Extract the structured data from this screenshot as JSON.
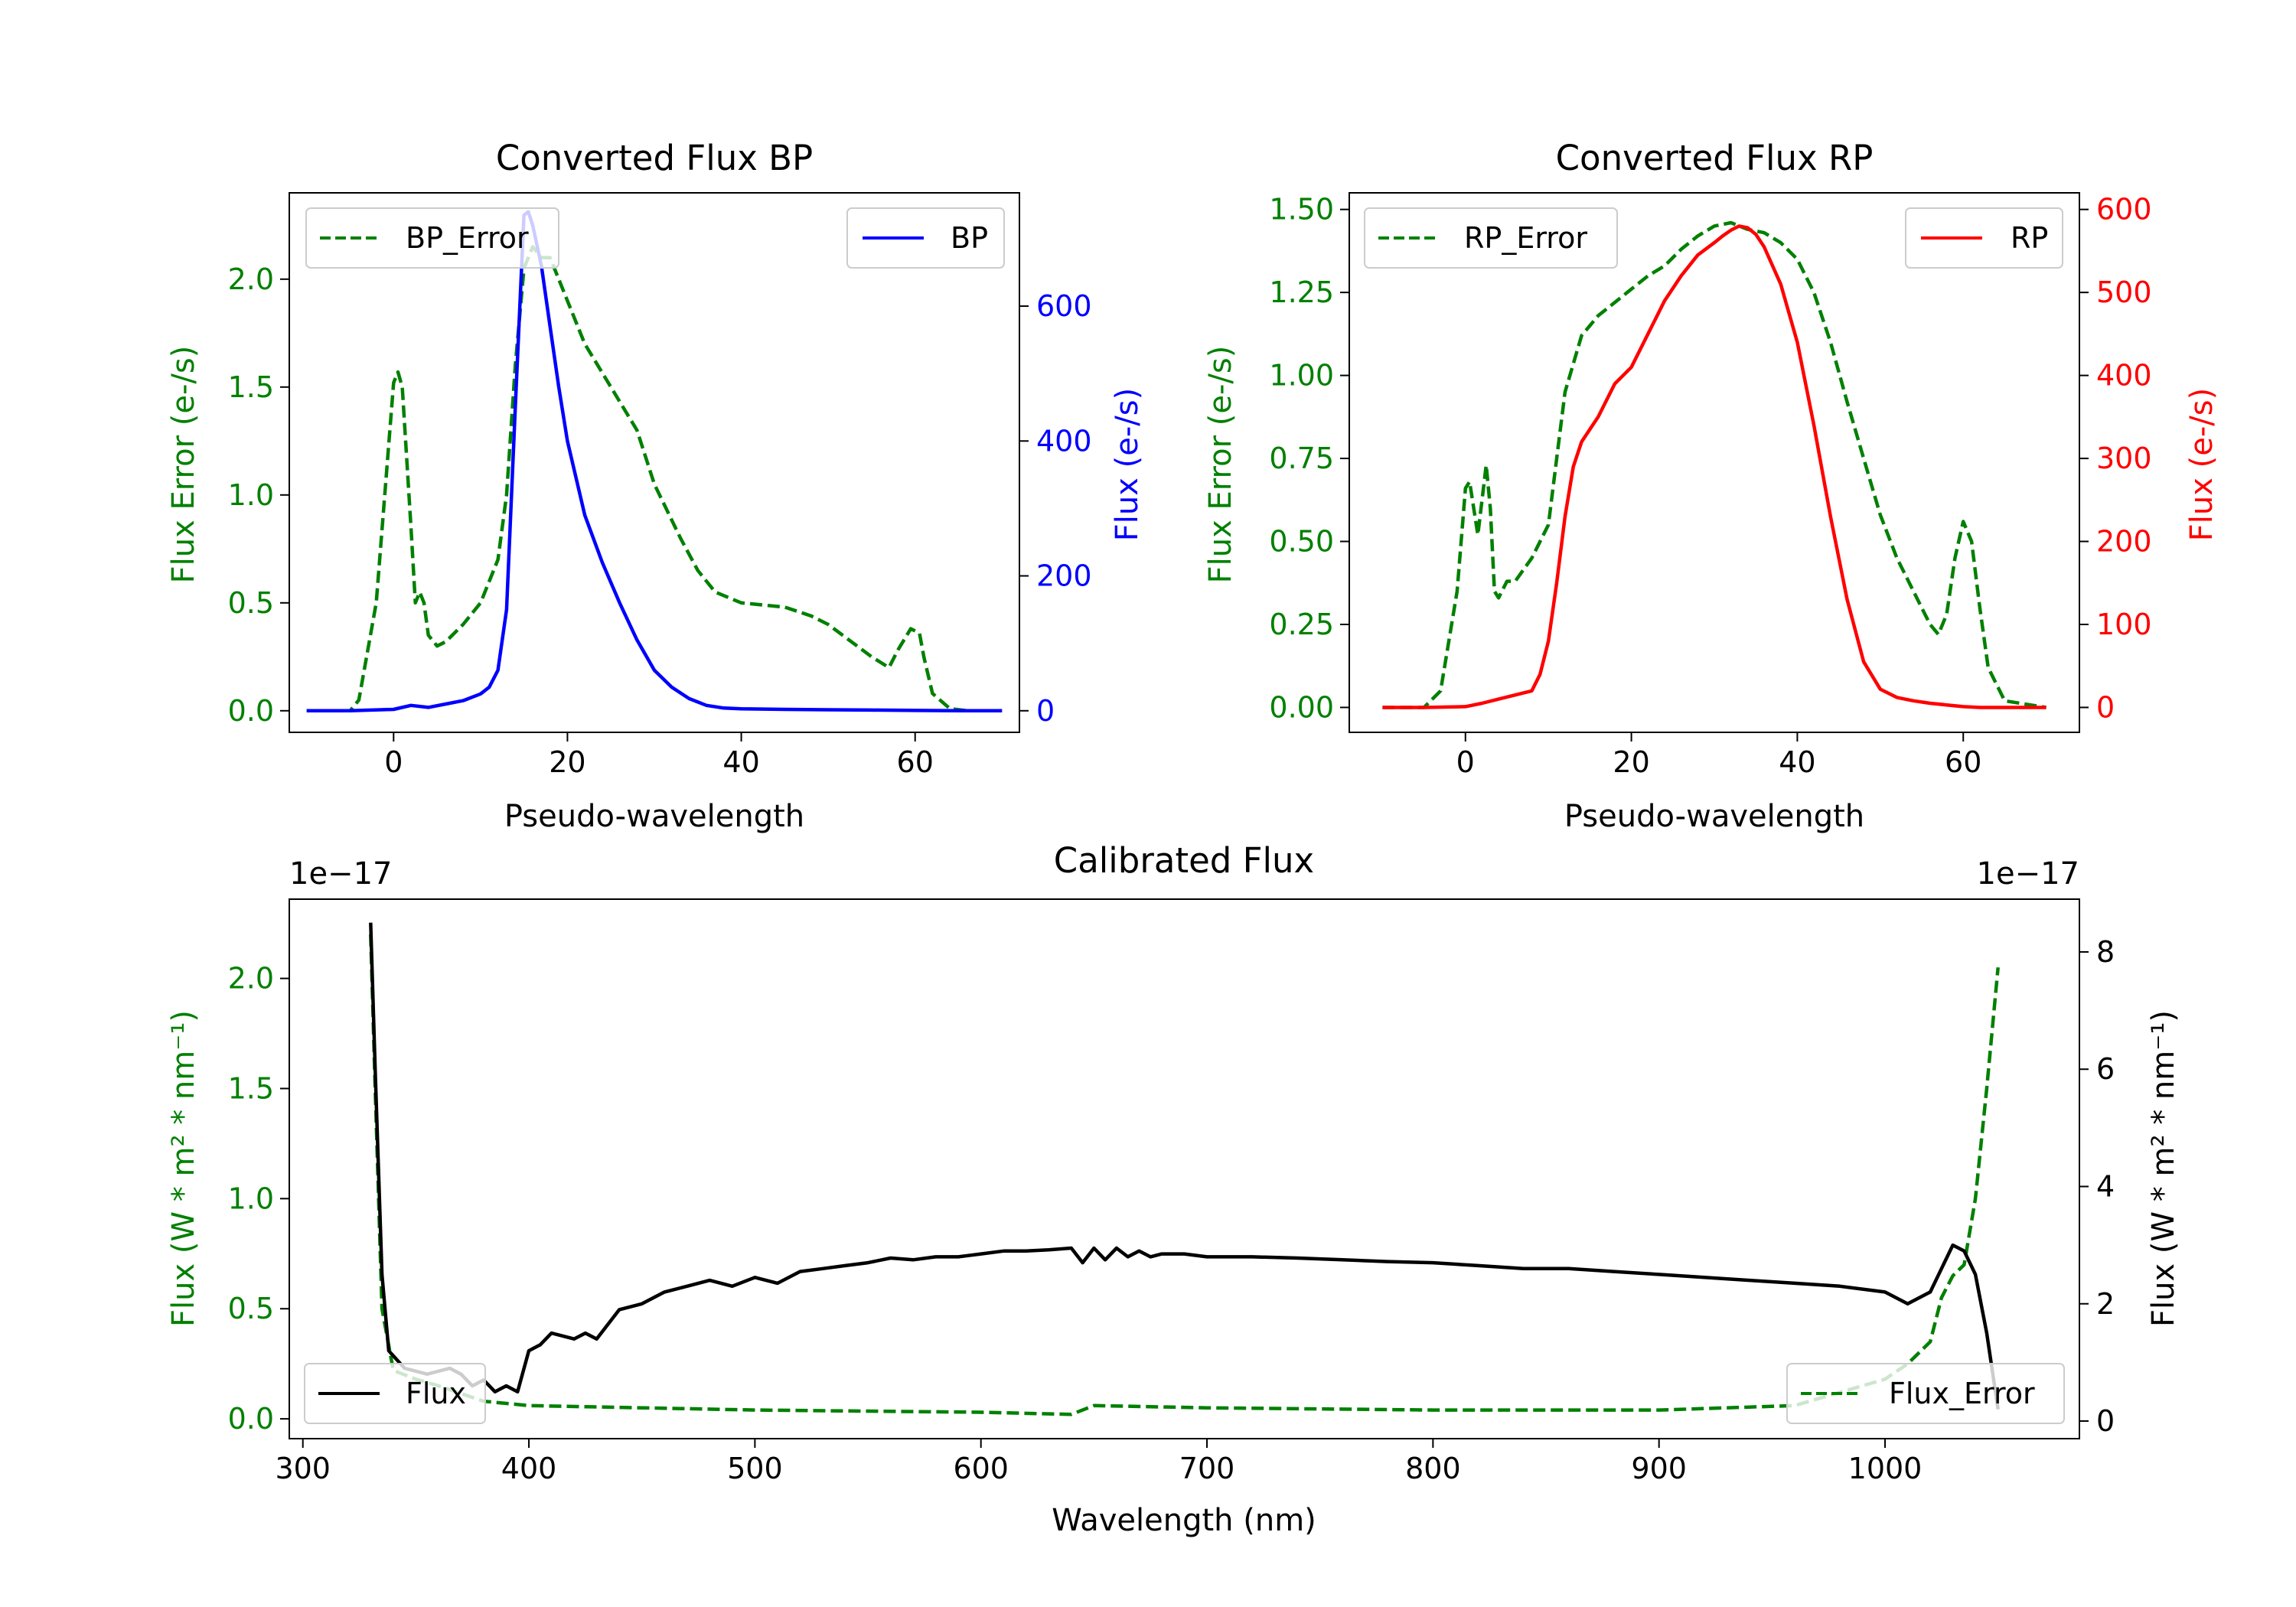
{
  "colors": {
    "green": "#008000",
    "blue": "#0000ff",
    "red": "#ff0000",
    "black": "#000000"
  },
  "chart_data": [
    {
      "id": "bp",
      "type": "line",
      "title": "Converted Flux BP",
      "xlabel": "Pseudo-wavelength",
      "ylabel_left": "Flux Error (e-/s)",
      "ylabel_right": "Flux (e-/s)",
      "xlim": [
        -12,
        72
      ],
      "ylim_left": [
        -0.1,
        2.4
      ],
      "ylim_right": [
        -32,
        768
      ],
      "xticks": [
        0,
        20,
        40,
        60
      ],
      "yticks_left": [
        "0.0",
        "0.5",
        "1.0",
        "1.5",
        "2.0"
      ],
      "yticks_right": [
        "0",
        "200",
        "400",
        "600"
      ],
      "legend_left": {
        "label": "BP_Error",
        "position": "upper left"
      },
      "legend_right": {
        "label": "BP",
        "position": "upper right"
      },
      "series": [
        {
          "name": "BP_Error",
          "axis": "left",
          "color": "#008000",
          "style": "dashed",
          "x": [
            -10,
            -5,
            -4,
            -2,
            0,
            0.5,
            1,
            2,
            2.5,
            3,
            3.5,
            4,
            5,
            6,
            8,
            10,
            12,
            13,
            14,
            15,
            16,
            17,
            18,
            20,
            22,
            25,
            28,
            30,
            33,
            35,
            37,
            40,
            45,
            48,
            50,
            55,
            57,
            58,
            59.5,
            60.5,
            61,
            62,
            64,
            66,
            70
          ],
          "y": [
            0,
            0,
            0.05,
            0.5,
            1.52,
            1.57,
            1.5,
            0.85,
            0.5,
            0.55,
            0.5,
            0.35,
            0.3,
            0.32,
            0.4,
            0.5,
            0.7,
            1.0,
            1.6,
            2.05,
            2.15,
            2.1,
            2.1,
            1.9,
            1.7,
            1.5,
            1.3,
            1.05,
            0.8,
            0.65,
            0.55,
            0.5,
            0.48,
            0.44,
            0.4,
            0.25,
            0.2,
            0.28,
            0.38,
            0.36,
            0.25,
            0.08,
            0.01,
            0,
            0
          ]
        },
        {
          "name": "BP",
          "axis": "right",
          "color": "#0000ff",
          "style": "solid",
          "x": [
            -10,
            -5,
            0,
            2,
            4,
            6,
            8,
            10,
            11,
            12,
            13,
            14,
            15,
            15.5,
            16,
            17,
            18,
            19,
            20,
            22,
            24,
            26,
            28,
            30,
            32,
            34,
            36,
            38,
            40,
            45,
            50,
            55,
            60,
            65,
            70
          ],
          "y": [
            0,
            0,
            2,
            8,
            5,
            10,
            15,
            25,
            35,
            60,
            150,
            450,
            735,
            740,
            720,
            660,
            570,
            480,
            400,
            290,
            220,
            160,
            105,
            60,
            35,
            18,
            8,
            4,
            3,
            2,
            1.5,
            1,
            0.5,
            0,
            0
          ]
        }
      ]
    },
    {
      "id": "rp",
      "type": "line",
      "title": "Converted Flux RP",
      "xlabel": "Pseudo-wavelength",
      "ylabel_left": "Flux Error (e-/s)",
      "ylabel_right": "Flux (e-/s)",
      "xlim": [
        -14,
        74
      ],
      "ylim_left": [
        -0.075,
        1.55
      ],
      "ylim_right": [
        -30,
        620
      ],
      "xticks": [
        0,
        20,
        40,
        60
      ],
      "yticks_left": [
        "0.00",
        "0.25",
        "0.50",
        "0.75",
        "1.00",
        "1.25",
        "1.50"
      ],
      "yticks_right": [
        "0",
        "100",
        "200",
        "300",
        "400",
        "500",
        "600"
      ],
      "legend_left": {
        "label": "RP_Error",
        "position": "upper left"
      },
      "legend_right": {
        "label": "RP",
        "position": "upper right"
      },
      "series": [
        {
          "name": "RP_Error",
          "axis": "left",
          "color": "#008000",
          "style": "dashed",
          "x": [
            -10,
            -5,
            -3,
            -1,
            0,
            0.5,
            1,
            1.5,
            2.5,
            3,
            3.5,
            4,
            5,
            6,
            8,
            10,
            11,
            12,
            14,
            16,
            18,
            20,
            22,
            24,
            26,
            28,
            30,
            32,
            34,
            36,
            38,
            40,
            42,
            44,
            46,
            48,
            50,
            52,
            54,
            55,
            56,
            57,
            58,
            59,
            60,
            61,
            62,
            63,
            65,
            70
          ],
          "y": [
            0,
            0,
            0.05,
            0.35,
            0.66,
            0.68,
            0.6,
            0.52,
            0.73,
            0.6,
            0.35,
            0.33,
            0.38,
            0.38,
            0.45,
            0.55,
            0.75,
            0.95,
            1.12,
            1.18,
            1.22,
            1.26,
            1.3,
            1.33,
            1.38,
            1.42,
            1.45,
            1.46,
            1.44,
            1.43,
            1.4,
            1.35,
            1.25,
            1.1,
            0.92,
            0.75,
            0.58,
            0.45,
            0.35,
            0.3,
            0.25,
            0.22,
            0.28,
            0.45,
            0.56,
            0.5,
            0.3,
            0.12,
            0.02,
            0
          ]
        },
        {
          "name": "RP",
          "axis": "right",
          "color": "#ff0000",
          "style": "solid",
          "x": [
            -10,
            -5,
            0,
            2,
            4,
            6,
            8,
            9,
            10,
            11,
            12,
            13,
            14,
            16,
            18,
            20,
            22,
            24,
            26,
            28,
            30,
            31,
            32,
            33,
            34,
            35,
            36,
            38,
            40,
            42,
            44,
            46,
            48,
            50,
            52,
            54,
            56,
            58,
            60,
            62,
            65,
            70
          ],
          "y": [
            0,
            0,
            1,
            5,
            10,
            15,
            20,
            40,
            80,
            150,
            230,
            290,
            320,
            350,
            390,
            410,
            450,
            490,
            520,
            545,
            560,
            568,
            575,
            580,
            578,
            570,
            555,
            510,
            440,
            340,
            230,
            130,
            55,
            22,
            12,
            8,
            5,
            3,
            1,
            0,
            0,
            0
          ]
        }
      ]
    },
    {
      "id": "calibrated",
      "type": "line",
      "title": "Calibrated Flux",
      "xlabel": "Wavelength (nm)",
      "ylabel_left": "Flux (W * m² * nm⁻¹)",
      "ylabel_right": "Flux (W * m² * nm⁻¹)",
      "offset_left": "1e−17",
      "offset_right": "1e−17",
      "xlim": [
        294,
        1086
      ],
      "ylim_left": [
        -0.09,
        2.36
      ],
      "ylim_right": [
        -0.3,
        8.9
      ],
      "xticks": [
        300,
        400,
        500,
        600,
        700,
        800,
        900,
        1000
      ],
      "yticks_left": [
        "0.0",
        "0.5",
        "1.0",
        "1.5",
        "2.0"
      ],
      "yticks_right": [
        "0",
        "2",
        "4",
        "6",
        "8"
      ],
      "legend_left": {
        "label": "Flux",
        "position": "lower left"
      },
      "legend_right": {
        "label": "Flux_Error",
        "position": "lower right"
      },
      "series": [
        {
          "name": "Flux_Error",
          "axis": "left",
          "color": "#008000",
          "style": "dashed",
          "x": [
            330,
            332,
            335,
            340,
            350,
            360,
            380,
            400,
            450,
            500,
            600,
            640,
            650,
            700,
            800,
            900,
            960,
            1000,
            1010,
            1020,
            1025,
            1030,
            1035,
            1040,
            1045,
            1050
          ],
          "y": [
            2.2,
            1.5,
            0.5,
            0.22,
            0.18,
            0.15,
            0.08,
            0.06,
            0.05,
            0.04,
            0.03,
            0.02,
            0.06,
            0.05,
            0.04,
            0.04,
            0.06,
            0.18,
            0.25,
            0.35,
            0.55,
            0.65,
            0.7,
            1.0,
            1.5,
            2.05
          ]
        },
        {
          "name": "Flux",
          "axis": "right",
          "color": "#000000",
          "style": "solid",
          "x": [
            330,
            332,
            335,
            338,
            345,
            355,
            365,
            370,
            375,
            380,
            385,
            390,
            395,
            400,
            405,
            410,
            420,
            425,
            430,
            440,
            450,
            460,
            470,
            480,
            490,
            500,
            510,
            520,
            530,
            540,
            550,
            560,
            570,
            580,
            590,
            600,
            610,
            620,
            630,
            640,
            645,
            650,
            655,
            660,
            665,
            670,
            675,
            680,
            690,
            700,
            720,
            740,
            760,
            780,
            800,
            820,
            840,
            860,
            880,
            900,
            920,
            940,
            960,
            980,
            1000,
            1010,
            1020,
            1025,
            1030,
            1035,
            1040,
            1045,
            1050
          ],
          "y": [
            8.5,
            6.0,
            2.5,
            1.2,
            0.9,
            0.8,
            0.9,
            0.8,
            0.6,
            0.7,
            0.5,
            0.6,
            0.5,
            1.2,
            1.3,
            1.5,
            1.4,
            1.5,
            1.4,
            1.9,
            2.0,
            2.2,
            2.3,
            2.4,
            2.3,
            2.45,
            2.35,
            2.55,
            2.6,
            2.65,
            2.7,
            2.78,
            2.75,
            2.8,
            2.8,
            2.85,
            2.9,
            2.9,
            2.92,
            2.95,
            2.7,
            2.95,
            2.75,
            2.95,
            2.8,
            2.9,
            2.8,
            2.85,
            2.85,
            2.8,
            2.8,
            2.78,
            2.75,
            2.72,
            2.7,
            2.65,
            2.6,
            2.6,
            2.55,
            2.5,
            2.45,
            2.4,
            2.35,
            2.3,
            2.2,
            2.0,
            2.2,
            2.6,
            3.0,
            2.9,
            2.5,
            1.5,
            0.2
          ]
        }
      ]
    }
  ]
}
